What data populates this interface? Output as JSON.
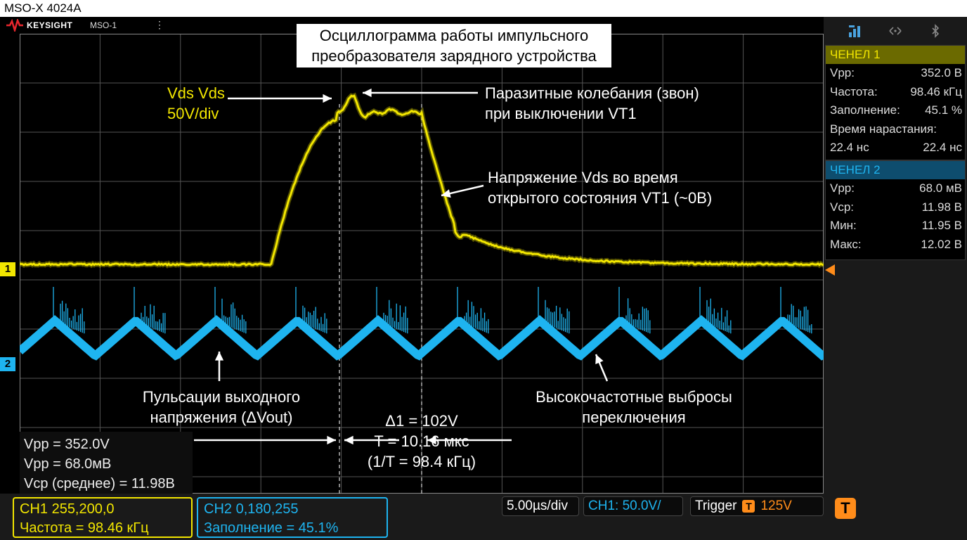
{
  "window": {
    "title": "MSO-X 4024A"
  },
  "toolbar": {
    "brand": "KEYSIGHT",
    "model": "MSO-1",
    "menu": "⋮"
  },
  "scope_title": {
    "line1": "Осциллограмма работы импульсного",
    "line2": "преобразователя зарядного устройства"
  },
  "annotations": {
    "ch1_label": {
      "line1": "Vds Vds",
      "line2": "50V/div"
    },
    "ringing": {
      "line1": "Паразитные колебания (звон)",
      "line2": "при выключении VT1"
    },
    "on_state": {
      "line1": "Напряжение Vds во время",
      "line2": "открытого состояния VT1 (~0В)"
    },
    "ripple": {
      "line1": "Пульсации выходного",
      "line2": "напряжения (ΔVout)"
    },
    "spikes": {
      "line1": "Высокочастотные выбросы",
      "line2": "переключения"
    },
    "cursor": {
      "line1": "Δ1 = 102V",
      "line2": "T = 10.16 мкс",
      "line3": "(1/T = 98.4 кГц)"
    }
  },
  "measurement_box": {
    "line1": "Vpp = 352.0V",
    "line2": "Vpp = 68.0мВ",
    "line3": "Vср (среднее) = 11.98В"
  },
  "channel_markers": {
    "ch1": "1",
    "ch2": "2"
  },
  "sidebar": {
    "ch1": {
      "title": "ЧЕНЕЛ 1",
      "rows": [
        {
          "label": "Vpp:",
          "value": "352.0 В"
        },
        {
          "label": "Частота:",
          "value": "98.46 кГц"
        },
        {
          "label": "Заполнение:",
          "value": "45.1 %"
        }
      ],
      "rise_label": "Время нарастания:",
      "rise_a": "22.4 нс",
      "rise_b": "22.4 нс"
    },
    "ch2": {
      "title": "ЧЕНЕЛ 2",
      "rows": [
        {
          "label": "Vpp:",
          "value": "68.0 мВ"
        },
        {
          "label": "Vср:",
          "value": "11.98 В"
        },
        {
          "label": "Мин:",
          "value": "11.95 В"
        },
        {
          "label": "Макс:",
          "value": "12.02 В"
        }
      ]
    }
  },
  "bottom": {
    "ch1_box": {
      "line1": "CH1  255,200,0",
      "line2": "Частота = 98.46 кГц"
    },
    "ch2_box": {
      "line1": "CH2  0,180,255",
      "line2": "Заполнение  = 45.1%"
    },
    "timebase": "5.00µs/div",
    "ch1_scale": "CH1: 50.0V/",
    "trigger_label": "Trigger",
    "trigger_badge": "T",
    "trigger_level": "125V",
    "trigger_button": "T"
  },
  "colors": {
    "ch1": "#f2e600",
    "ch2": "#1eb4f0",
    "trigger": "#ff8c1a",
    "grid": "#555555"
  }
}
